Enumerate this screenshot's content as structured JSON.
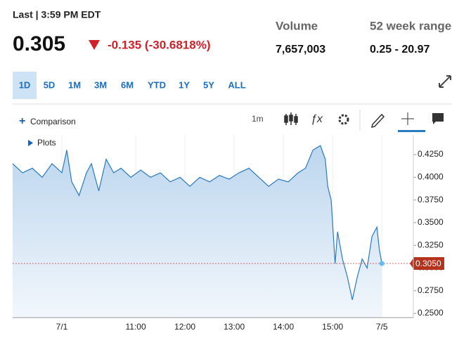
{
  "header": {
    "last_label": "Last | 3:59 PM EDT",
    "price": "0.305",
    "change": "-0.135 (-30.6818%)",
    "volume_label": "Volume",
    "volume": "7,657,003",
    "range_label": "52 week range",
    "range": "0.25 - 20.97"
  },
  "timeframes": [
    "1D",
    "5D",
    "1M",
    "3M",
    "6M",
    "YTD",
    "1Y",
    "5Y",
    "ALL"
  ],
  "toolbar": {
    "comparison": "Comparison",
    "interval": "1m",
    "plots": "Plots"
  },
  "chart_data": {
    "type": "line",
    "color": "#2a7ac0",
    "x": [
      8.5,
      8.7,
      8.9,
      9.1,
      9.3,
      9.5,
      9.6,
      9.7,
      9.85,
      10.0,
      10.1,
      10.25,
      10.4,
      10.55,
      10.7,
      10.9,
      11.1,
      11.3,
      11.5,
      11.7,
      11.9,
      12.1,
      12.3,
      12.5,
      12.7,
      12.9,
      13.1,
      13.3,
      13.5,
      13.7,
      13.9,
      14.1,
      14.3,
      14.45,
      14.6,
      14.75,
      14.85,
      14.9,
      14.97,
      15.05,
      15.1,
      15.2,
      15.3,
      15.4,
      15.5,
      15.6,
      15.7,
      15.8,
      15.9,
      15.95,
      16.0
    ],
    "values": [
      0.415,
      0.405,
      0.41,
      0.4,
      0.415,
      0.405,
      0.43,
      0.395,
      0.38,
      0.405,
      0.415,
      0.385,
      0.42,
      0.405,
      0.41,
      0.4,
      0.408,
      0.4,
      0.405,
      0.395,
      0.4,
      0.39,
      0.4,
      0.395,
      0.402,
      0.398,
      0.405,
      0.41,
      0.4,
      0.39,
      0.398,
      0.395,
      0.405,
      0.41,
      0.43,
      0.435,
      0.42,
      0.39,
      0.375,
      0.305,
      0.34,
      0.31,
      0.29,
      0.265,
      0.29,
      0.31,
      0.3,
      0.335,
      0.345,
      0.32,
      0.305
    ],
    "xlim": [
      8.5,
      16.64
    ],
    "xticks": [
      {
        "value": 9.5,
        "label": "7/1"
      },
      {
        "value": 11,
        "label": "11:00"
      },
      {
        "value": 12,
        "label": "12:00"
      },
      {
        "value": 13,
        "label": "13:00"
      },
      {
        "value": 14,
        "label": "14:00"
      },
      {
        "value": 15,
        "label": "15:00"
      },
      {
        "value": 16,
        "label": "7/5"
      }
    ],
    "ylim": [
      0.2454,
      0.4467
    ],
    "yticks": [
      {
        "value": 0.25,
        "label": "0.2500"
      },
      {
        "value": 0.275,
        "label": "0.2750"
      },
      {
        "value": 0.3,
        "label": "0.3000"
      },
      {
        "value": 0.325,
        "label": "0.3250"
      },
      {
        "value": 0.35,
        "label": "0.3500"
      },
      {
        "value": 0.375,
        "label": "0.3750"
      },
      {
        "value": 0.4,
        "label": "0.4000"
      },
      {
        "value": 0.425,
        "label": "0.4250"
      }
    ],
    "last_price": {
      "value": 0.305,
      "label": "0.3050"
    },
    "grid": true
  }
}
